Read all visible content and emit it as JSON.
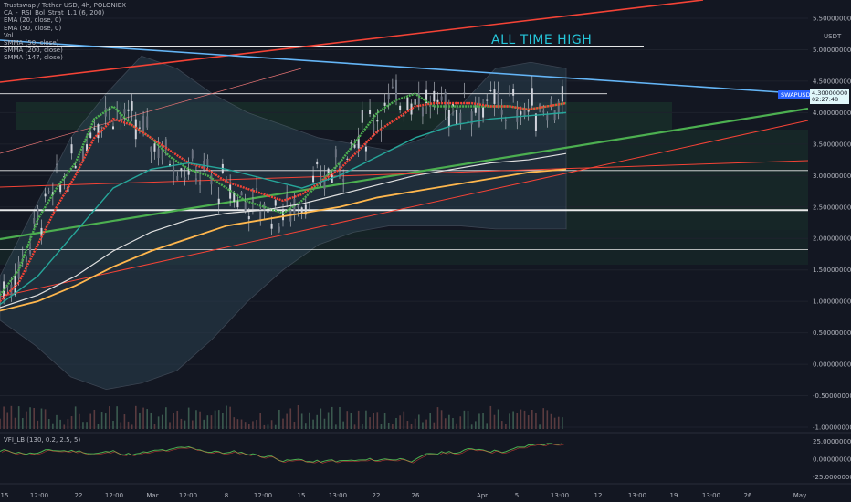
{
  "header": {
    "title": "Trustswap / Tether USD, 4h, POLONIEX",
    "indicators": [
      "CA_-_RSI_Bol_Strat_1.1 (6, 200)",
      "EMA (20, close, 0)",
      "EMA (50, close, 0)",
      "Vol",
      "SMMA (50, close)",
      "SMMA (200, close)",
      "SMMA (147, close)"
    ]
  },
  "annotation": {
    "text": "ALL TIME HIGH"
  },
  "symbol_badge": {
    "label": "SWAPUSDT"
  },
  "price_badge": {
    "price": "4.30000000",
    "countdown": "02:27:48"
  },
  "currency_label": "USDT",
  "vfi": {
    "label": "VFI_LB (130, 0.2, 2.5, 5)",
    "ticks": [
      "25.00000000",
      "0.00000000",
      "-25.00000000"
    ]
  },
  "colors": {
    "background": "#131722",
    "grid": "#1e222d",
    "ema20": "#4caf50",
    "ema50": "#f44336",
    "smma50": "#26a69a",
    "smma200": "#ffb74d",
    "smma147": "#e0e0e0",
    "bollinger": "#2a3f4f",
    "trend_red": "#f44336",
    "trend_blue": "#64b5f6",
    "trend_green": "#4caf50",
    "ath_text": "#26c6da"
  },
  "chart_data": {
    "type": "line",
    "y_axis": {
      "ticks": [
        "5.50000000",
        "5.00000000",
        "4.50000000",
        "4.00000000",
        "3.50000000",
        "3.00000000",
        "2.50000000",
        "2.00000000",
        "1.50000000",
        "1.00000000",
        "0.50000000",
        "0.00000000",
        "-0.50000000",
        "-1.00000000"
      ],
      "ylim": [
        -1.0,
        5.6
      ]
    },
    "x_axis": {
      "ticks": [
        "15",
        "12:00",
        "22",
        "12:00",
        "Mar",
        "12:00",
        "8",
        "12:00",
        "15",
        "13:00",
        "22",
        "26",
        "Apr",
        "5",
        "13:00",
        "12",
        "13:00",
        "19",
        "13:00",
        "26",
        "May"
      ]
    },
    "horizontal_levels": [
      5.05,
      4.3,
      3.55,
      3.08,
      2.45,
      1.82
    ],
    "series": [
      {
        "name": "EMA (20, close, 0)",
        "x": [
          0,
          5,
          10,
          15,
          20,
          25,
          30,
          35,
          40,
          45,
          50,
          55,
          60,
          65,
          70,
          75,
          80,
          85,
          90,
          95,
          100,
          105,
          110,
          115,
          120,
          125,
          130,
          135,
          140,
          145,
          150
        ],
        "values": [
          1.1,
          1.5,
          2.3,
          2.8,
          3.2,
          3.9,
          4.1,
          3.8,
          3.6,
          3.3,
          3.1,
          3.0,
          2.8,
          2.6,
          2.5,
          2.4,
          2.6,
          2.9,
          3.2,
          3.6,
          4.0,
          4.2,
          4.3,
          4.1,
          4.1,
          4.1,
          4.1,
          4.1,
          4.05,
          4.1,
          4.15
        ]
      },
      {
        "name": "EMA (50, close, 0)",
        "x": [
          0,
          5,
          10,
          15,
          20,
          25,
          30,
          35,
          40,
          45,
          50,
          55,
          60,
          65,
          70,
          75,
          80,
          85,
          90,
          95,
          100,
          105,
          110,
          115,
          120,
          125,
          130,
          135,
          140,
          145,
          150
        ],
        "values": [
          1.0,
          1.3,
          1.9,
          2.5,
          3.0,
          3.6,
          3.9,
          3.8,
          3.6,
          3.4,
          3.2,
          3.1,
          2.9,
          2.8,
          2.7,
          2.6,
          2.7,
          2.9,
          3.1,
          3.4,
          3.7,
          3.9,
          4.1,
          4.15,
          4.15,
          4.15,
          4.1,
          4.1,
          4.05,
          4.1,
          4.15
        ]
      },
      {
        "name": "SMMA (50, close)",
        "x": [
          0,
          10,
          20,
          30,
          40,
          50,
          60,
          70,
          80,
          90,
          100,
          110,
          120,
          130,
          140,
          150
        ],
        "values": [
          0.95,
          1.4,
          2.1,
          2.8,
          3.1,
          3.2,
          3.1,
          2.95,
          2.8,
          3.0,
          3.3,
          3.6,
          3.8,
          3.9,
          3.95,
          4.0
        ]
      },
      {
        "name": "SMMA (147, close)",
        "x": [
          0,
          10,
          20,
          30,
          40,
          50,
          60,
          70,
          80,
          90,
          100,
          110,
          120,
          130,
          140,
          150
        ],
        "values": [
          0.9,
          1.1,
          1.4,
          1.8,
          2.1,
          2.3,
          2.4,
          2.45,
          2.55,
          2.7,
          2.85,
          3.0,
          3.1,
          3.2,
          3.25,
          3.35
        ]
      },
      {
        "name": "SMMA (200, close)",
        "x": [
          0,
          10,
          20,
          30,
          40,
          50,
          60,
          70,
          80,
          90,
          100,
          110,
          120,
          130,
          140,
          150
        ],
        "values": [
          0.85,
          1.0,
          1.25,
          1.55,
          1.8,
          2.0,
          2.2,
          2.3,
          2.4,
          2.5,
          2.65,
          2.75,
          2.85,
          2.95,
          3.05,
          3.1
        ]
      }
    ]
  }
}
